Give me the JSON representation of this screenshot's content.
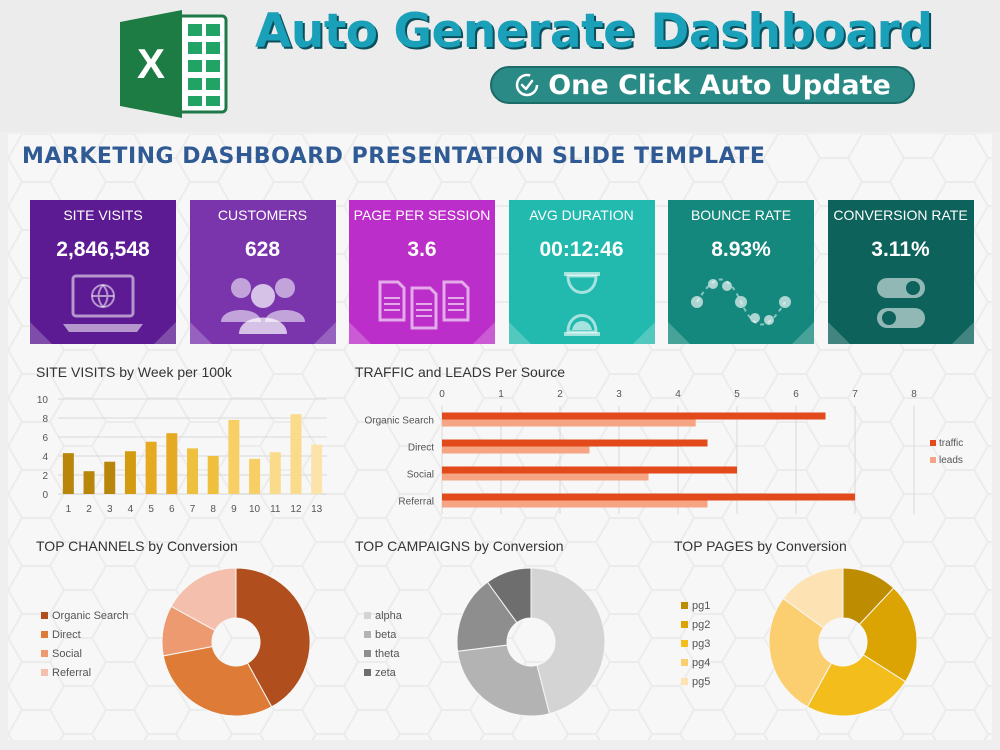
{
  "banner": {
    "title": "Auto Generate Dashboard",
    "subtitle": "One Click Auto Update",
    "logo_icon": "excel-logo-icon",
    "logo_letter": "X"
  },
  "slide": {
    "title": "MARKETING DASHBOARD PRESENTATION SLIDE TEMPLATE"
  },
  "kpis": [
    {
      "label": "SITE VISITS",
      "value": "2,846,548",
      "color": "#5c1a93",
      "icon": "laptop-globe-icon"
    },
    {
      "label": "CUSTOMERS",
      "value": "628",
      "color": "#7a35ad",
      "icon": "users-icon"
    },
    {
      "label": "PAGE PER SESSION",
      "value": "3.6",
      "color": "#bb2ec9",
      "icon": "documents-icon"
    },
    {
      "label": "AVG DURATION",
      "value": "00:12:46",
      "color": "#22b9ae",
      "icon": "hourglass-icon"
    },
    {
      "label": "BOUNCE RATE",
      "value": "8.93%",
      "color": "#14887c",
      "icon": "wave-icon"
    },
    {
      "label": "CONVERSION RATE",
      "value": "3.11%",
      "color": "#0d625c",
      "icon": "toggle-icon"
    }
  ],
  "chart_data": [
    {
      "type": "bar",
      "title": "SITE VISITS by Week per 100k",
      "categories": [
        "1",
        "2",
        "3",
        "4",
        "5",
        "6",
        "7",
        "8",
        "9",
        "10",
        "11",
        "12",
        "13"
      ],
      "values": [
        4.3,
        2.4,
        3.4,
        4.5,
        5.5,
        6.4,
        4.8,
        4.0,
        7.8,
        3.7,
        4.4,
        8.4,
        5.2
      ],
      "colors": [
        "#b8860b",
        "#b8860b",
        "#b8860b",
        "#d39b0f",
        "#e6a922",
        "#e6a922",
        "#efbf3e",
        "#efbf3e",
        "#f7cf64",
        "#f7cf64",
        "#fadb8c",
        "#fadb8c",
        "#fbe3aa"
      ],
      "yticks": [
        0,
        2,
        4,
        6,
        8,
        10
      ],
      "ylim": [
        0,
        10
      ],
      "grid": true
    },
    {
      "type": "bar",
      "orientation": "horizontal",
      "title": "TRAFFIC and LEADS Per Source",
      "categories": [
        "Organic Search",
        "Direct",
        "Social",
        "Referral"
      ],
      "series": [
        {
          "name": "traffic",
          "values": [
            6.5,
            4.5,
            5.0,
            7.0
          ],
          "color": "#e2491b"
        },
        {
          "name": "leads",
          "values": [
            4.3,
            2.5,
            3.5,
            4.5
          ],
          "color": "#f5a583"
        }
      ],
      "xticks": [
        0,
        1,
        2,
        3,
        4,
        5,
        6,
        7,
        8
      ],
      "xlim": [
        0,
        8
      ],
      "legend": "right",
      "grid": true
    },
    {
      "type": "pie",
      "title": "TOP CHANNELS by Conversion",
      "labels": [
        "Organic Search",
        "Direct",
        "Social",
        "Referral"
      ],
      "values": [
        42,
        30,
        11,
        17
      ],
      "colors": [
        "#b04e1d",
        "#de7c37",
        "#ee9a70",
        "#f4c0ad"
      ],
      "legend": "left"
    },
    {
      "type": "pie",
      "title": "TOP CAMPAIGNS by Conversion",
      "labels": [
        "alpha",
        "beta",
        "theta",
        "zeta"
      ],
      "values": [
        46,
        27,
        17,
        10
      ],
      "colors": [
        "#d4d4d4",
        "#b3b3b3",
        "#8e8e8e",
        "#6e6e6e"
      ],
      "legend": "left"
    },
    {
      "type": "pie",
      "title": "TOP PAGES by Conversion",
      "labels": [
        "pg1",
        "pg2",
        "pg3",
        "pg4",
        "pg5"
      ],
      "values": [
        12,
        22,
        24,
        27,
        15
      ],
      "colors": [
        "#bd8c00",
        "#dca402",
        "#f3bd1b",
        "#fbcf70",
        "#fde2b3"
      ],
      "legend": "left"
    }
  ]
}
